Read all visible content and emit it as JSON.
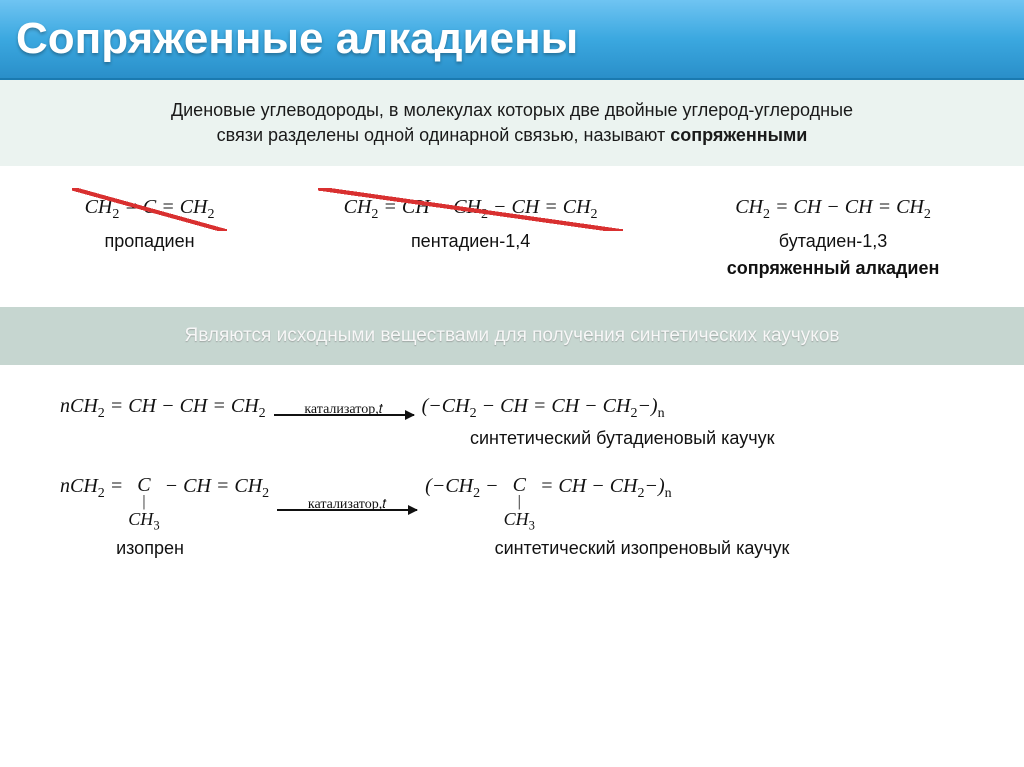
{
  "title": "Сопряженные алкадиены",
  "intro_line1": "Диеновые углеводороды, в молекулах которых две двойные углерод-углеродные",
  "intro_line2": "связи разделены одной одинарной связью, называют ",
  "intro_bold": "сопряженными",
  "examples": {
    "propadiene": {
      "formula_html": "CH<sub>2</sub> = C = CH<sub>2</sub>",
      "label": "пропадиен"
    },
    "pentadiene": {
      "formula_html": "CH<sub>2</sub> = CH − CH<sub>2</sub> − CH = CH<sub>2</sub>",
      "label": "пентадиен-1,4"
    },
    "butadiene": {
      "formula_html": "CH<sub>2</sub> = CH − CH = CH<sub>2</sub>",
      "label": "бутадиен-1,3",
      "sublabel": "сопряженный алкадиен"
    }
  },
  "mid_band": "Являются исходными веществами для получения синтетических каучуков",
  "arrow_text": "катализатор,𝑡",
  "reaction1": {
    "left_html": "nCH<sub>2</sub> = CH − CH = CH<sub>2</sub>",
    "right_html": "(−CH<sub>2</sub> − CH = CH − CH<sub>2</sub>−)<sub>n</sub>",
    "label": "синтетический бутадиеновый каучук"
  },
  "reaction2": {
    "left_pre_html": "nCH<sub>2</sub> = ",
    "left_c": "C",
    "left_post_html": " − CH = CH<sub>2</sub>",
    "right_pre_html": "(−CH<sub>2</sub> − ",
    "right_c": "C",
    "right_post_html": " = CH − CH<sub>2</sub>−)<sub>n</sub>",
    "ch3_html": "CH<sub>3</sub>",
    "left_label": "изопрен",
    "right_label": "синтетический изопреновый каучук"
  },
  "colors": {
    "title_grad_top": "#6fc4f2",
    "title_grad_bottom": "#2a8fc9",
    "intro_bg": "#ebf3f0",
    "mid_bg": "#c6d6d0",
    "cross": "#d93030"
  }
}
